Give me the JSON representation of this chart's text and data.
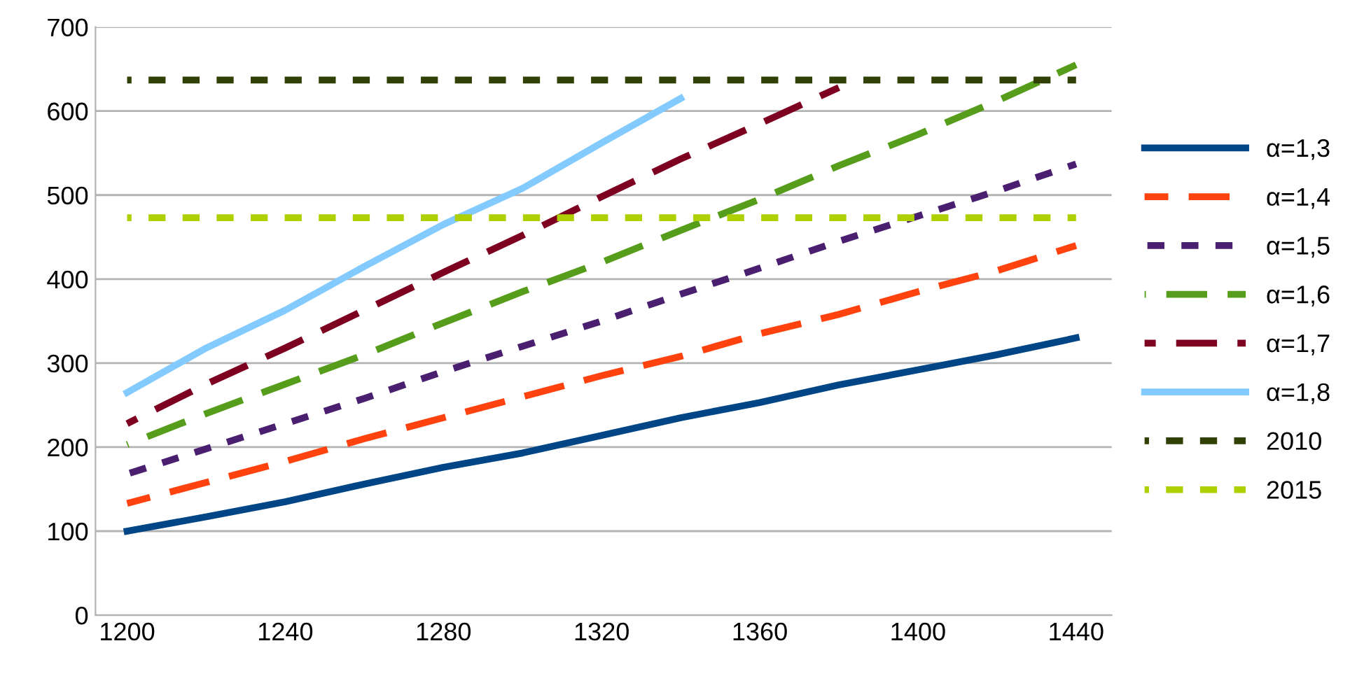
{
  "chart_data": {
    "type": "line",
    "x": [
      1200,
      1220,
      1240,
      1260,
      1280,
      1300,
      1320,
      1340,
      1360,
      1380,
      1400,
      1420,
      1440
    ],
    "series": [
      {
        "name": "α=1,3",
        "color": "#004586",
        "line_style": "solid",
        "values": [
          100,
          117,
          135,
          156,
          176,
          193,
          214,
          235,
          253,
          274,
          292,
          310,
          330
        ]
      },
      {
        "name": "α=1,4",
        "color": "#ff420e",
        "line_style": "dashed",
        "values": [
          133,
          158,
          183,
          210,
          235,
          260,
          285,
          308,
          335,
          358,
          385,
          410,
          440
        ]
      },
      {
        "name": "α=1,5",
        "color": "#4b1f6f",
        "line_style": "dotted",
        "values": [
          168,
          198,
          228,
          258,
          290,
          320,
          350,
          382,
          413,
          445,
          475,
          505,
          537
        ]
      },
      {
        "name": "α=1,6",
        "color": "#579d1c",
        "line_style": "dashed",
        "values": [
          203,
          240,
          275,
          310,
          348,
          385,
          420,
          458,
          495,
          535,
          572,
          612,
          655
        ]
      },
      {
        "name": "α=1,7",
        "color": "#7e0021",
        "line_style": "dashed",
        "values": [
          228,
          275,
          318,
          363,
          408,
          452,
          498,
          543,
          585,
          628,
          null,
          null,
          null
        ]
      },
      {
        "name": "α=1,8",
        "color": "#83caff",
        "line_style": "solid",
        "values": [
          265,
          318,
          363,
          415,
          465,
          508,
          562,
          615,
          null,
          null,
          null,
          null,
          null
        ]
      },
      {
        "name": "2010",
        "color": "#314004",
        "line_style": "dotted",
        "values": [
          637,
          637,
          637,
          637,
          637,
          637,
          637,
          637,
          637,
          637,
          637,
          637,
          637
        ]
      },
      {
        "name": "2015",
        "color": "#aecf00",
        "line_style": "dotted",
        "values": [
          473,
          473,
          473,
          473,
          473,
          473,
          473,
          473,
          473,
          473,
          473,
          473,
          473
        ]
      }
    ],
    "xlim": [
      1192,
      1449
    ],
    "xticks": [
      1200,
      1240,
      1280,
      1320,
      1360,
      1400,
      1440
    ],
    "ylim": [
      0,
      700
    ],
    "yticks": [
      0,
      100,
      200,
      300,
      400,
      500,
      600,
      700
    ],
    "grid": "y",
    "legend": "right",
    "marker": "none"
  }
}
